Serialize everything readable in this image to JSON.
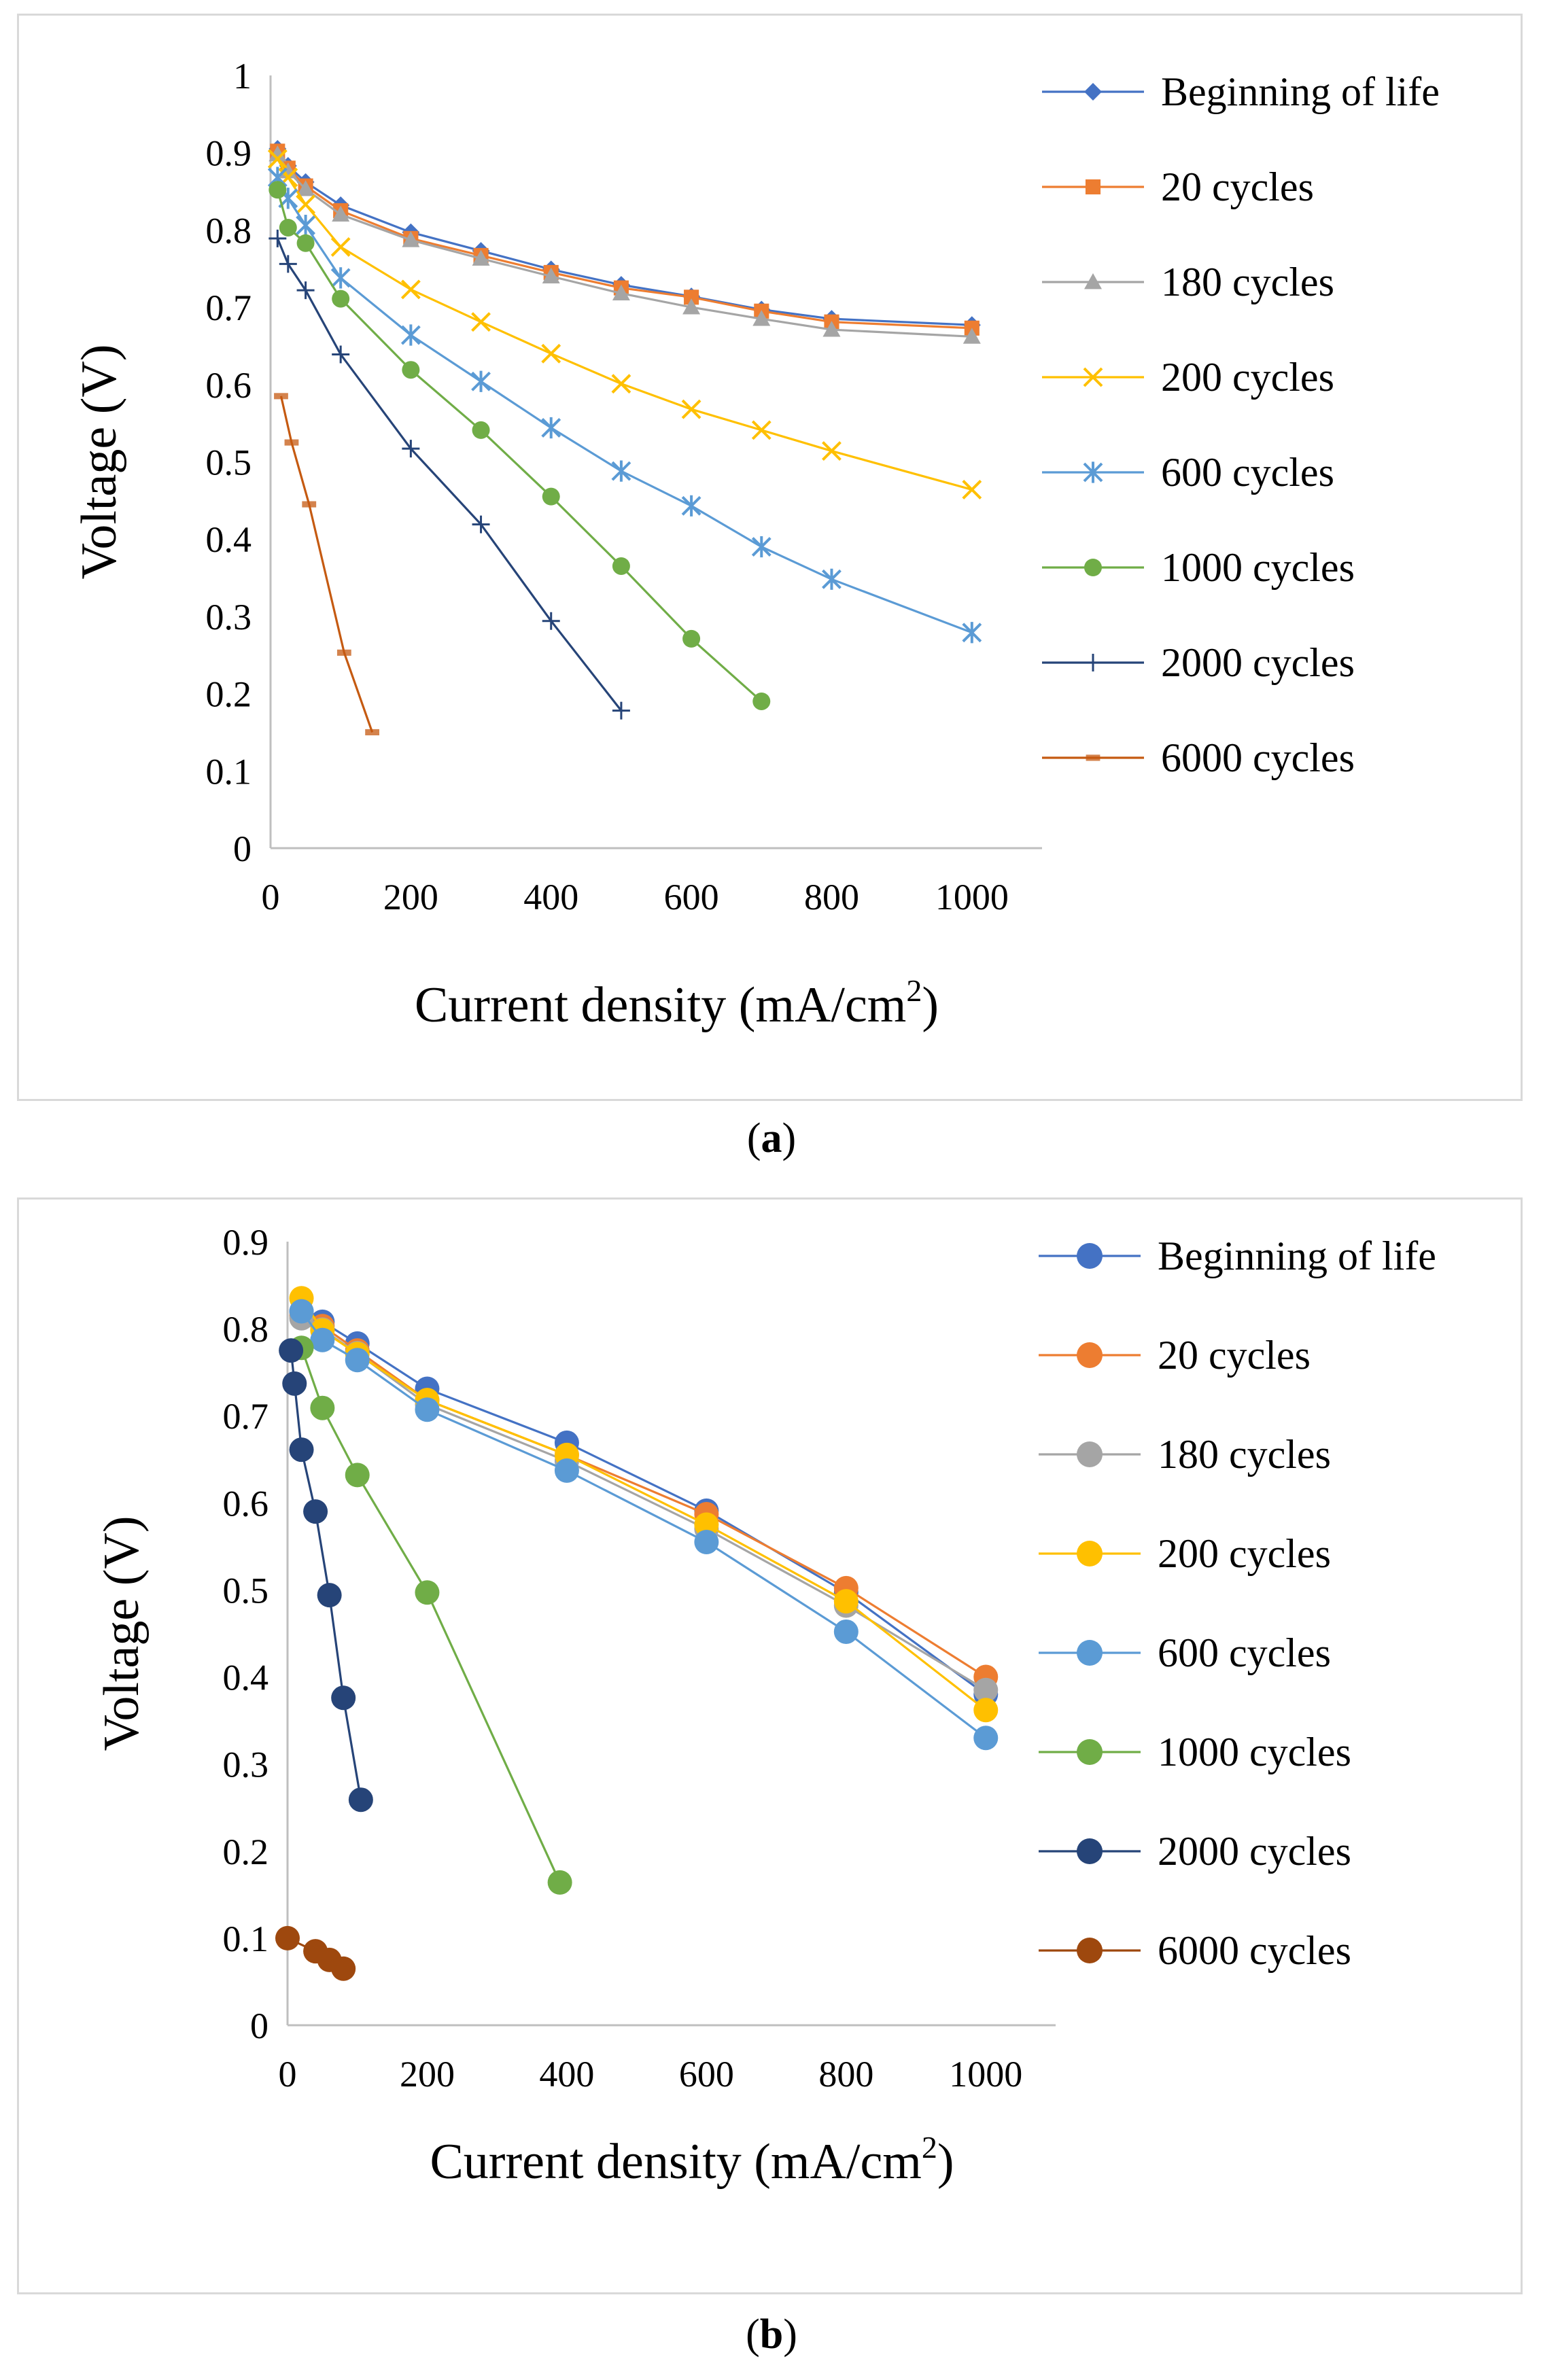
{
  "captions": [
    {
      "open": "(",
      "label": "a",
      "close": ")"
    },
    {
      "open": "(",
      "label": "b",
      "close": ")"
    }
  ],
  "chart_data": [
    {
      "type": "line",
      "marker_style": "excel",
      "xlabel": "Current density (mA/cm",
      "xlabel_sup": "2",
      "xlabel_end": ")",
      "ylabel": "Voltage (V)",
      "xlim": [
        0,
        1100
      ],
      "ylim": [
        0,
        1
      ],
      "xticks": [
        0,
        200,
        400,
        600,
        800,
        1000
      ],
      "yticks": [
        0,
        0.1,
        0.2,
        0.3,
        0.4,
        0.5,
        0.6,
        0.7,
        0.8,
        0.9,
        1
      ],
      "ytick_labels": [
        "0",
        "0.1",
        "0.2",
        "0.3",
        "0.4",
        "0.5",
        "0.6",
        "0.7",
        "0.8",
        "0.9",
        "1"
      ],
      "legend": "right",
      "series": [
        {
          "name": "Beginning of life",
          "color": "#4472c4",
          "marker": "diamond",
          "x": [
            10,
            25,
            50,
            100,
            200,
            300,
            400,
            500,
            600,
            700,
            800,
            1000
          ],
          "y": [
            0.905,
            0.883,
            0.862,
            0.832,
            0.797,
            0.773,
            0.749,
            0.729,
            0.714,
            0.697,
            0.685,
            0.677
          ]
        },
        {
          "name": "20 cycles",
          "color": "#ed7d31",
          "marker": "square",
          "x": [
            10,
            25,
            50,
            100,
            200,
            300,
            400,
            500,
            600,
            700,
            800,
            1000
          ],
          "y": [
            0.902,
            0.88,
            0.857,
            0.825,
            0.789,
            0.767,
            0.745,
            0.725,
            0.713,
            0.695,
            0.681,
            0.673
          ]
        },
        {
          "name": "180 cycles",
          "color": "#a5a5a5",
          "marker": "triangle",
          "x": [
            10,
            25,
            50,
            100,
            200,
            300,
            400,
            500,
            600,
            700,
            800,
            1000
          ],
          "y": [
            0.898,
            0.876,
            0.853,
            0.82,
            0.787,
            0.763,
            0.74,
            0.718,
            0.7,
            0.685,
            0.671,
            0.662
          ]
        },
        {
          "name": "200 cycles",
          "color": "#ffc000",
          "marker": "x",
          "x": [
            10,
            25,
            50,
            100,
            200,
            300,
            400,
            500,
            600,
            700,
            800,
            1000
          ],
          "y": [
            0.892,
            0.868,
            0.833,
            0.778,
            0.723,
            0.681,
            0.64,
            0.601,
            0.568,
            0.541,
            0.514,
            0.464
          ]
        },
        {
          "name": "600 cycles",
          "color": "#5b9bd5",
          "marker": "star",
          "x": [
            10,
            25,
            50,
            100,
            200,
            300,
            400,
            500,
            600,
            700,
            800,
            1000
          ],
          "y": [
            0.868,
            0.841,
            0.806,
            0.738,
            0.664,
            0.604,
            0.544,
            0.488,
            0.443,
            0.39,
            0.348,
            0.279
          ]
        },
        {
          "name": "1000 cycles",
          "color": "#70ad47",
          "marker": "circle",
          "x": [
            10,
            25,
            50,
            100,
            200,
            300,
            400,
            500,
            600,
            700
          ],
          "y": [
            0.852,
            0.803,
            0.783,
            0.711,
            0.619,
            0.541,
            0.455,
            0.365,
            0.271,
            0.19
          ]
        },
        {
          "name": "2000 cycles",
          "color": "#264478",
          "marker": "plus",
          "x": [
            10,
            25,
            50,
            100,
            200,
            300,
            400,
            500
          ],
          "y": [
            0.789,
            0.756,
            0.722,
            0.639,
            0.517,
            0.419,
            0.294,
            0.178
          ]
        },
        {
          "name": "6000 cycles",
          "color": "#c55a11",
          "marker": "dash",
          "x": [
            15,
            30,
            55,
            105,
            145
          ],
          "y": [
            0.585,
            0.525,
            0.445,
            0.253,
            0.15
          ]
        }
      ]
    },
    {
      "type": "line",
      "marker_style": "circle",
      "xlabel": "Current density (mA/cm",
      "xlabel_sup": "2",
      "xlabel_end": ")",
      "ylabel": "Voltage (V)",
      "xlim": [
        0,
        1100
      ],
      "ylim": [
        0,
        0.9
      ],
      "xticks": [
        0,
        200,
        400,
        600,
        800,
        1000
      ],
      "yticks": [
        0,
        0.1,
        0.2,
        0.3,
        0.4,
        0.5,
        0.6,
        0.7,
        0.8,
        0.9
      ],
      "ytick_labels": [
        "0",
        "0.1",
        "0.2",
        "0.3",
        "0.4",
        "0.5",
        "0.6",
        "0.7",
        "0.8",
        "0.9"
      ],
      "legend": "right",
      "series": [
        {
          "name": "Beginning of life",
          "color": "#4472c4",
          "x": [
            20,
            50,
            100,
            200,
            400,
            600,
            800,
            1000
          ],
          "y": [
            0.82,
            0.808,
            0.783,
            0.731,
            0.669,
            0.591,
            0.497,
            0.38
          ]
        },
        {
          "name": "20 cycles",
          "color": "#ed7d31",
          "x": [
            20,
            50,
            100,
            200,
            400,
            600,
            800,
            1000
          ],
          "y": [
            0.815,
            0.803,
            0.775,
            0.718,
            0.655,
            0.587,
            0.502,
            0.4
          ]
        },
        {
          "name": "180 cycles",
          "color": "#a5a5a5",
          "x": [
            20,
            50,
            100,
            200,
            400,
            600,
            800,
            1000
          ],
          "y": [
            0.812,
            0.799,
            0.772,
            0.713,
            0.648,
            0.57,
            0.482,
            0.385
          ]
        },
        {
          "name": "200 cycles",
          "color": "#ffc000",
          "x": [
            20,
            50,
            100,
            200,
            400,
            600,
            800,
            1000
          ],
          "y": [
            0.835,
            0.798,
            0.771,
            0.718,
            0.655,
            0.575,
            0.487,
            0.362
          ]
        },
        {
          "name": "600 cycles",
          "color": "#5b9bd5",
          "x": [
            20,
            50,
            100,
            200,
            400,
            600,
            800,
            1000
          ],
          "y": [
            0.82,
            0.787,
            0.764,
            0.707,
            0.637,
            0.555,
            0.452,
            0.33
          ]
        },
        {
          "name": "1000 cycles",
          "color": "#70ad47",
          "x": [
            20,
            50,
            100,
            200,
            390
          ],
          "y": [
            0.778,
            0.709,
            0.632,
            0.497,
            0.164
          ]
        },
        {
          "name": "2000 cycles",
          "color": "#264478",
          "x": [
            5,
            10,
            20,
            40,
            60,
            80,
            105
          ],
          "y": [
            0.775,
            0.737,
            0.661,
            0.59,
            0.494,
            0.376,
            0.259
          ]
        },
        {
          "name": "6000 cycles",
          "color": "#9e480e",
          "x": [
            0,
            40,
            60,
            80
          ],
          "y": [
            0.1,
            0.085,
            0.075,
            0.065
          ]
        }
      ]
    }
  ]
}
